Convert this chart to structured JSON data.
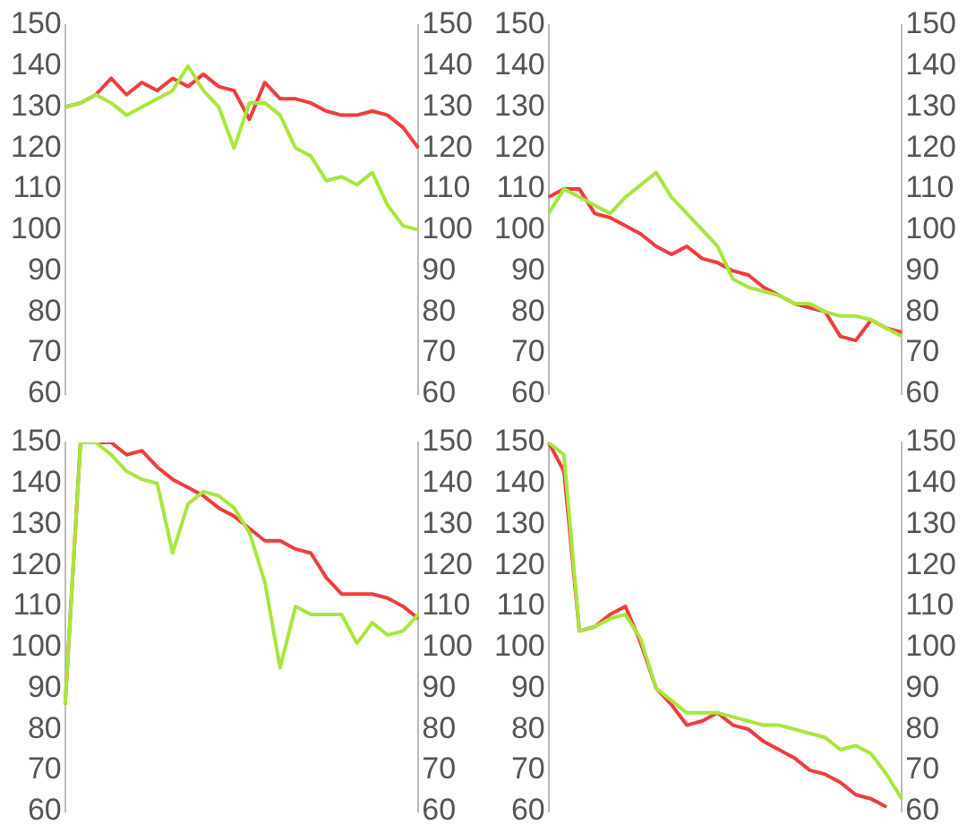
{
  "chart_data": [
    {
      "type": "line",
      "categories": [
        null,
        null,
        null,
        null,
        null,
        null,
        null,
        null,
        null,
        null,
        null,
        null,
        null,
        null,
        null,
        null,
        null,
        null,
        null,
        null,
        null,
        null,
        null,
        null
      ],
      "marker": "none",
      "ylim": [
        60,
        150
      ],
      "yticks": [
        60,
        70,
        80,
        90,
        100,
        110,
        120,
        130,
        140,
        150
      ],
      "y2lim": [
        60,
        150
      ],
      "y2ticks": [
        60,
        70,
        80,
        90,
        100,
        110,
        120,
        130,
        140,
        150
      ],
      "series": [
        {
          "color": "#a8e63c",
          "values": [
            130,
            131,
            133,
            131,
            128,
            130,
            132,
            134,
            140,
            134,
            130,
            120,
            131,
            131,
            128,
            120,
            118,
            112,
            113,
            111,
            114,
            106,
            101,
            100
          ]
        },
        {
          "color": "#f03c3c",
          "values": [
            130,
            131,
            133,
            137,
            133,
            136,
            134,
            137,
            135,
            138,
            135,
            134,
            127,
            136,
            132,
            132,
            131,
            129,
            128,
            128,
            129,
            128,
            125,
            120
          ]
        }
      ]
    },
    {
      "type": "line",
      "categories": [
        null,
        null,
        null,
        null,
        null,
        null,
        null,
        null,
        null,
        null,
        null,
        null,
        null,
        null,
        null,
        null,
        null,
        null,
        null,
        null,
        null,
        null,
        null,
        null
      ],
      "marker": "none",
      "ylim": [
        60,
        150
      ],
      "yticks": [
        60,
        70,
        80,
        90,
        100,
        110,
        120,
        130,
        140,
        150
      ],
      "y2lim": [
        60,
        150
      ],
      "y2ticks": [
        60,
        70,
        80,
        90,
        100,
        110,
        120,
        130,
        140,
        150
      ],
      "series": [
        {
          "color": "#a8e63c",
          "values": [
            104,
            110,
            108,
            106,
            104,
            108,
            111,
            114,
            108,
            104,
            100,
            96,
            88,
            86,
            85,
            84,
            82,
            82,
            80,
            79,
            79,
            78,
            76,
            74
          ]
        },
        {
          "color": "#f03c3c",
          "values": [
            108,
            110,
            110,
            104,
            103,
            101,
            99,
            96,
            94,
            96,
            93,
            92,
            90,
            89,
            86,
            84,
            82,
            81,
            80,
            74,
            73,
            78,
            76,
            75
          ]
        }
      ]
    },
    {
      "type": "line",
      "categories": [
        null,
        null,
        null,
        null,
        null,
        null,
        null,
        null,
        null,
        null,
        null,
        null,
        null,
        null,
        null,
        null,
        null,
        null,
        null,
        null,
        null,
        null,
        null,
        null
      ],
      "marker": "none",
      "ylim": [
        60,
        150
      ],
      "yticks": [
        60,
        70,
        80,
        90,
        100,
        110,
        120,
        130,
        140,
        150
      ],
      "y2lim": [
        60,
        150
      ],
      "y2ticks": [
        60,
        70,
        80,
        90,
        100,
        110,
        120,
        130,
        140,
        150
      ],
      "series": [
        {
          "color": "#a8e63c",
          "values": [
            86,
            150,
            150,
            147,
            143,
            141,
            140,
            123,
            135,
            138,
            137,
            134,
            128,
            116,
            95,
            110,
            108,
            108,
            108,
            101,
            106,
            103,
            104,
            108
          ]
        },
        {
          "color": "#f03c3c",
          "values": [
            86,
            150,
            150,
            150,
            147,
            148,
            144,
            141,
            139,
            137,
            134,
            132,
            129,
            126,
            126,
            124,
            123,
            117,
            113,
            113,
            113,
            112,
            110,
            107
          ]
        }
      ]
    },
    {
      "type": "line",
      "categories": [
        null,
        null,
        null,
        null,
        null,
        null,
        null,
        null,
        null,
        null,
        null,
        null,
        null,
        null,
        null,
        null,
        null,
        null,
        null,
        null,
        null,
        null,
        null,
        null
      ],
      "marker": "none",
      "ylim": [
        60,
        150
      ],
      "yticks": [
        60,
        70,
        80,
        90,
        100,
        110,
        120,
        130,
        140,
        150
      ],
      "y2lim": [
        60,
        150
      ],
      "y2ticks": [
        60,
        70,
        80,
        90,
        100,
        110,
        120,
        130,
        140,
        150
      ],
      "series": [
        {
          "color": "#a8e63c",
          "values": [
            150,
            147,
            104,
            105,
            107,
            108,
            102,
            90,
            87,
            84,
            84,
            84,
            83,
            82,
            81,
            81,
            80,
            79,
            78,
            75,
            76,
            74,
            69,
            63
          ]
        },
        {
          "color": "#f03c3c",
          "values": [
            150,
            143,
            104,
            105,
            108,
            110,
            101,
            90,
            86,
            81,
            82,
            84,
            81,
            80,
            77,
            75,
            73,
            70,
            69,
            67,
            64,
            63,
            61,
            null
          ]
        }
      ]
    }
  ]
}
